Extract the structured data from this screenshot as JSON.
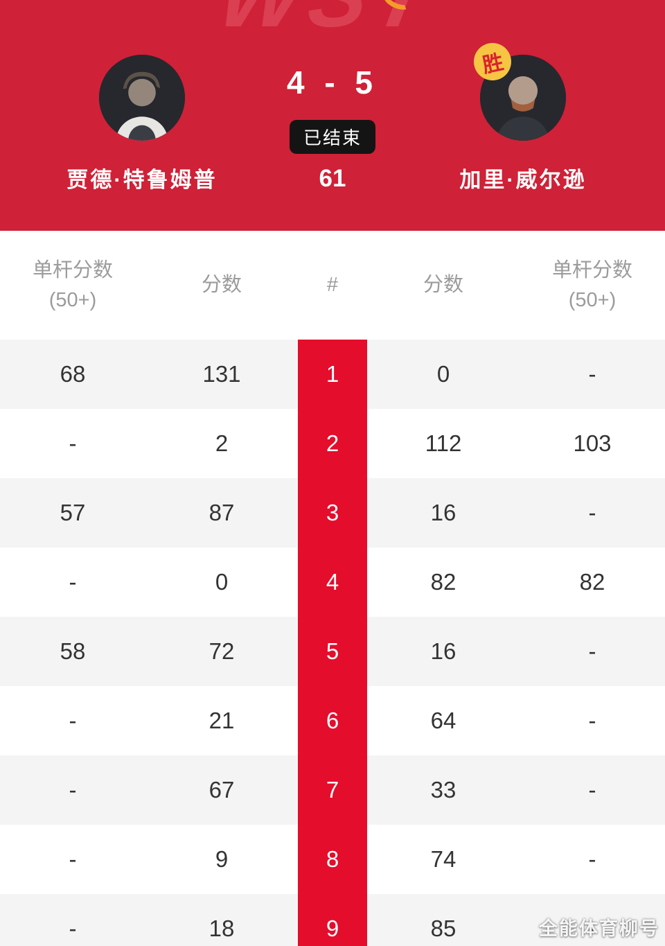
{
  "hero": {
    "logo": "WST",
    "score": "4 - 5",
    "status": "已结束",
    "frame_points": "61",
    "player_left": {
      "name": "贾德·特鲁姆普"
    },
    "player_right": {
      "name": "加里·威尔逊",
      "win_badge": "胜"
    }
  },
  "table": {
    "headers": [
      {
        "line1": "单杆分数",
        "line2": "(50+)"
      },
      {
        "line1": "分数",
        "line2": ""
      },
      {
        "line1": "#",
        "line2": ""
      },
      {
        "line1": "分数",
        "line2": ""
      },
      {
        "line1": "单杆分数",
        "line2": "(50+)"
      }
    ],
    "rows": [
      {
        "break_left": "68",
        "score_left": "131",
        "frame": "1",
        "score_right": "0",
        "break_right": "-"
      },
      {
        "break_left": "-",
        "score_left": "2",
        "frame": "2",
        "score_right": "112",
        "break_right": "103"
      },
      {
        "break_left": "57",
        "score_left": "87",
        "frame": "3",
        "score_right": "16",
        "break_right": "-"
      },
      {
        "break_left": "-",
        "score_left": "0",
        "frame": "4",
        "score_right": "82",
        "break_right": "82"
      },
      {
        "break_left": "58",
        "score_left": "72",
        "frame": "5",
        "score_right": "16",
        "break_right": "-"
      },
      {
        "break_left": "-",
        "score_left": "21",
        "frame": "6",
        "score_right": "64",
        "break_right": "-"
      },
      {
        "break_left": "-",
        "score_left": "67",
        "frame": "7",
        "score_right": "33",
        "break_right": "-"
      },
      {
        "break_left": "-",
        "score_left": "9",
        "frame": "8",
        "score_right": "74",
        "break_right": "-"
      },
      {
        "break_left": "-",
        "score_left": "18",
        "frame": "9",
        "score_right": "85",
        "break_right": "-"
      }
    ]
  },
  "watermark": "全能体育柳号",
  "colors": {
    "hero_red": "#cf2137",
    "logo_red": "#dd4355",
    "column_red": "#e40d2c",
    "row_alt": "#f4f4f5",
    "badge_black": "#141414",
    "win_yellow": "#f6c544",
    "win_text": "#d9232e",
    "header_gray": "#9b9b9b",
    "cell_text": "#333333"
  }
}
